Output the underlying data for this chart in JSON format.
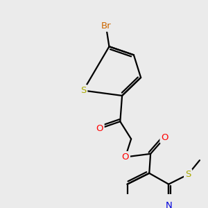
{
  "bg_color": "#ebebeb",
  "bond_color": "#000000",
  "bond_width": 1.6,
  "figsize": [
    3.0,
    3.0
  ],
  "dpi": 100,
  "atom_colors": {
    "Br": "#cc6600",
    "S": "#aaaa00",
    "O": "#ff0000",
    "N": "#0000dd"
  }
}
